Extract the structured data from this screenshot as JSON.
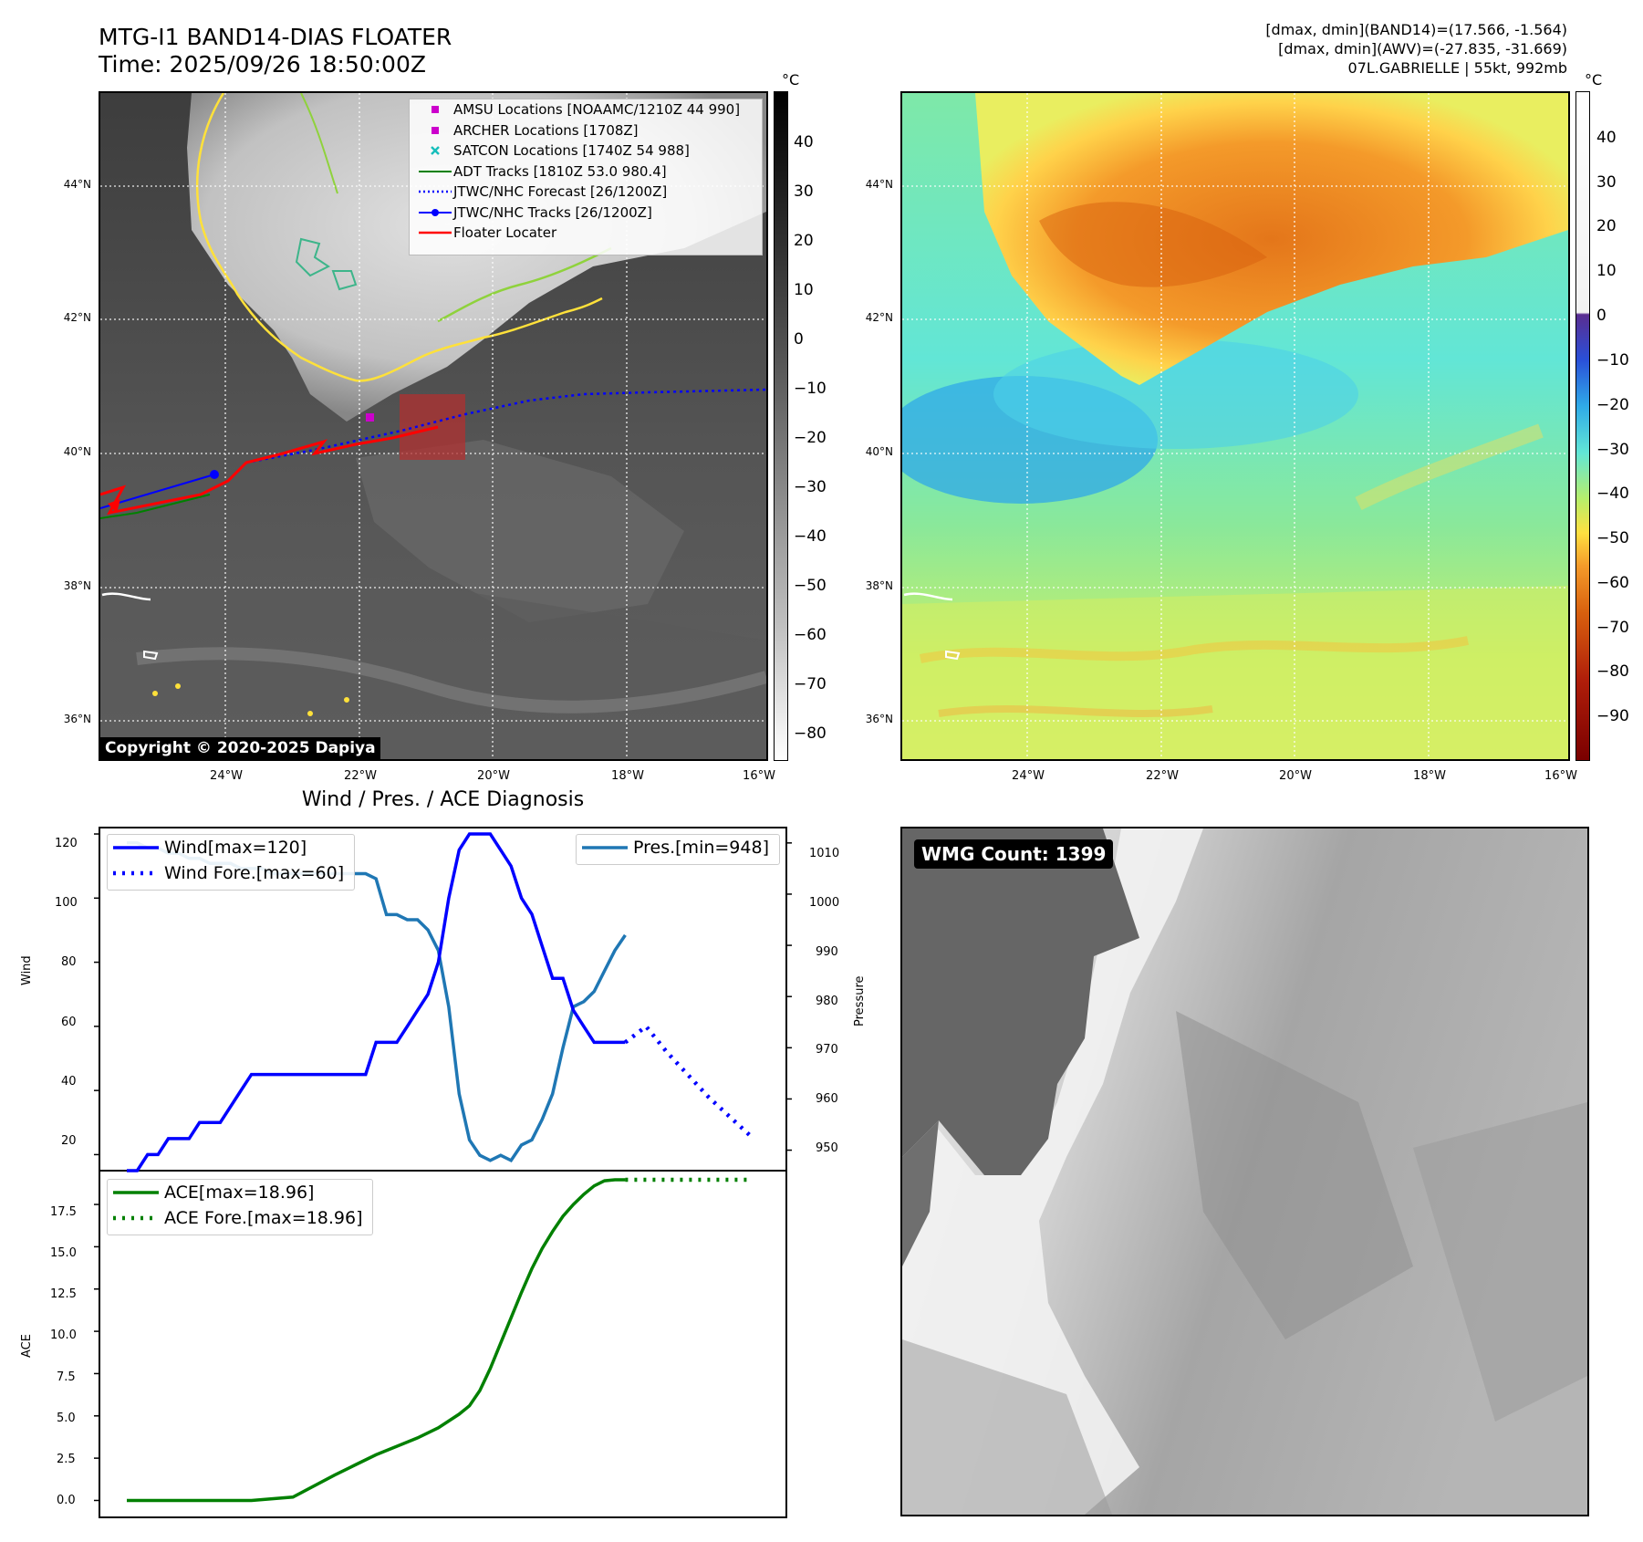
{
  "header": {
    "title": "MTG-I1 BAND14-DIAS FLOATER",
    "time": "Time: 2025/09/26 18:50:00Z",
    "right_line1": "[dmax, dmin](BAND14)=(17.566, -1.564)",
    "right_line2": "[dmax, dmin](AWV)=(-27.835, -31.669)",
    "right_line3": "07L.GABRIELLE | 55kt, 992mb"
  },
  "map": {
    "lat_labels": [
      "44°N",
      "42°N",
      "40°N",
      "38°N",
      "36°N"
    ],
    "lon_labels": [
      "24°W",
      "22°W",
      "20°W",
      "18°W",
      "16°W"
    ],
    "copyright": "Copyright © 2020-2025 Dapiya",
    "legend": [
      "AMSU Locations [NOAAMC/1210Z 44 990]",
      "ARCHER Locations [1708Z]",
      "SATCON Locations [1740Z 54 988]",
      "ADT Tracks [1810Z 53.0 980.4]",
      "JTWC/NHC Forecast [26/1200Z]",
      "JTWC/NHC Tracks [26/1200Z]",
      "Floater Locater"
    ]
  },
  "colorbar_ir": {
    "unit": "°C",
    "ticks": [
      "40",
      "30",
      "20",
      "10",
      "0",
      "−10",
      "−20",
      "−30",
      "−40",
      "−50",
      "−60",
      "−70",
      "−80"
    ]
  },
  "colorbar_wv": {
    "unit": "°C",
    "ticks": [
      "40",
      "30",
      "20",
      "10",
      "0",
      "−10",
      "−20",
      "−30",
      "−40",
      "−50",
      "−60",
      "−70",
      "−80",
      "−90"
    ]
  },
  "wmg": {
    "label": "WMG Count: 1399"
  },
  "colors": {
    "wind": "#0000ff",
    "pressure": "#1f77b4",
    "ace": "#008000",
    "floater": "#ff0000"
  },
  "chart_data": [
    {
      "type": "line",
      "title": "Wind / Pres. / ACE Diagnosis",
      "ylabel": "Wind",
      "ylabel_right": "Pressure",
      "ylim": [
        15,
        122
      ],
      "ylim_right": [
        946,
        1013
      ],
      "yticks": [
        "120",
        "100",
        "80",
        "60",
        "40",
        "20"
      ],
      "yticks_right": [
        "1010",
        "1000",
        "990",
        "980",
        "970",
        "960",
        "950"
      ],
      "legend_wind": "Wind[max=120]",
      "legend_wind_fore": "Wind Fore.[max=60]",
      "legend_pres": "Pres.[min=948]",
      "series": [
        {
          "name": "Wind",
          "x": [
            0,
            1,
            2,
            3,
            4,
            5,
            6,
            7,
            8,
            9,
            10,
            11,
            12,
            13,
            14,
            15,
            16,
            17,
            18,
            19,
            20,
            21,
            22,
            23,
            24,
            25,
            26,
            27,
            28,
            29,
            30,
            31,
            32,
            33,
            34,
            35,
            36,
            37,
            38,
            39,
            40,
            41,
            42,
            43,
            44,
            45,
            46,
            47,
            48
          ],
          "values": [
            15,
            15,
            20,
            20,
            25,
            25,
            25,
            30,
            30,
            30,
            35,
            40,
            45,
            45,
            45,
            45,
            45,
            45,
            45,
            45,
            45,
            45,
            45,
            45,
            55,
            55,
            55,
            60,
            65,
            70,
            80,
            100,
            115,
            120,
            120,
            120,
            115,
            110,
            100,
            95,
            85,
            75,
            75,
            65,
            60,
            55,
            55,
            55,
            55
          ]
        },
        {
          "name": "Wind Fore.",
          "x": [
            48,
            50,
            52,
            54,
            56,
            58,
            60
          ],
          "values": [
            55,
            60,
            52,
            45,
            38,
            32,
            26
          ]
        },
        {
          "name": "Pres.",
          "x": [
            0,
            1,
            2,
            3,
            4,
            5,
            6,
            7,
            8,
            9,
            10,
            11,
            12,
            13,
            14,
            15,
            16,
            17,
            18,
            19,
            20,
            21,
            22,
            23,
            24,
            25,
            26,
            27,
            28,
            29,
            30,
            31,
            32,
            33,
            34,
            35,
            36,
            37,
            38,
            39,
            40,
            41,
            42,
            43,
            44,
            45,
            46,
            47,
            48
          ],
          "values": [
            1010,
            1010,
            1009,
            1009,
            1008,
            1008,
            1007,
            1007,
            1006,
            1006,
            1006,
            1005,
            1005,
            1005,
            1004,
            1004,
            1004,
            1004,
            1004,
            1004,
            1004,
            1004,
            1004,
            1004,
            1003,
            996,
            996,
            995,
            995,
            993,
            989,
            978,
            961,
            952,
            949,
            948,
            949,
            948,
            951,
            952,
            956,
            961,
            970,
            978,
            979,
            981,
            985,
            989,
            992
          ]
        }
      ]
    },
    {
      "type": "line",
      "ylabel": "ACE",
      "ylim": [
        -1,
        19.5
      ],
      "yticks": [
        "17.5",
        "15.0",
        "12.5",
        "10.0",
        "7.5",
        "5.0",
        "2.5",
        "0.0"
      ],
      "legend_ace": "ACE[max=18.96]",
      "legend_ace_fore": "ACE Fore.[max=18.96]",
      "series": [
        {
          "name": "ACE",
          "x": [
            0,
            4,
            8,
            12,
            16,
            20,
            22,
            24,
            26,
            28,
            30,
            32,
            33,
            34,
            35,
            36,
            37,
            38,
            39,
            40,
            41,
            42,
            43,
            44,
            45,
            46,
            47,
            48
          ],
          "values": [
            0,
            0,
            0,
            0,
            0.2,
            1.5,
            2.1,
            2.7,
            3.2,
            3.7,
            4.3,
            5.1,
            5.6,
            6.5,
            7.8,
            9.3,
            10.8,
            12.3,
            13.7,
            14.9,
            15.9,
            16.8,
            17.5,
            18.1,
            18.6,
            18.9,
            18.96,
            18.96
          ]
        },
        {
          "name": "ACE Fore.",
          "x": [
            48,
            60
          ],
          "values": [
            18.96,
            18.96
          ]
        }
      ]
    }
  ]
}
